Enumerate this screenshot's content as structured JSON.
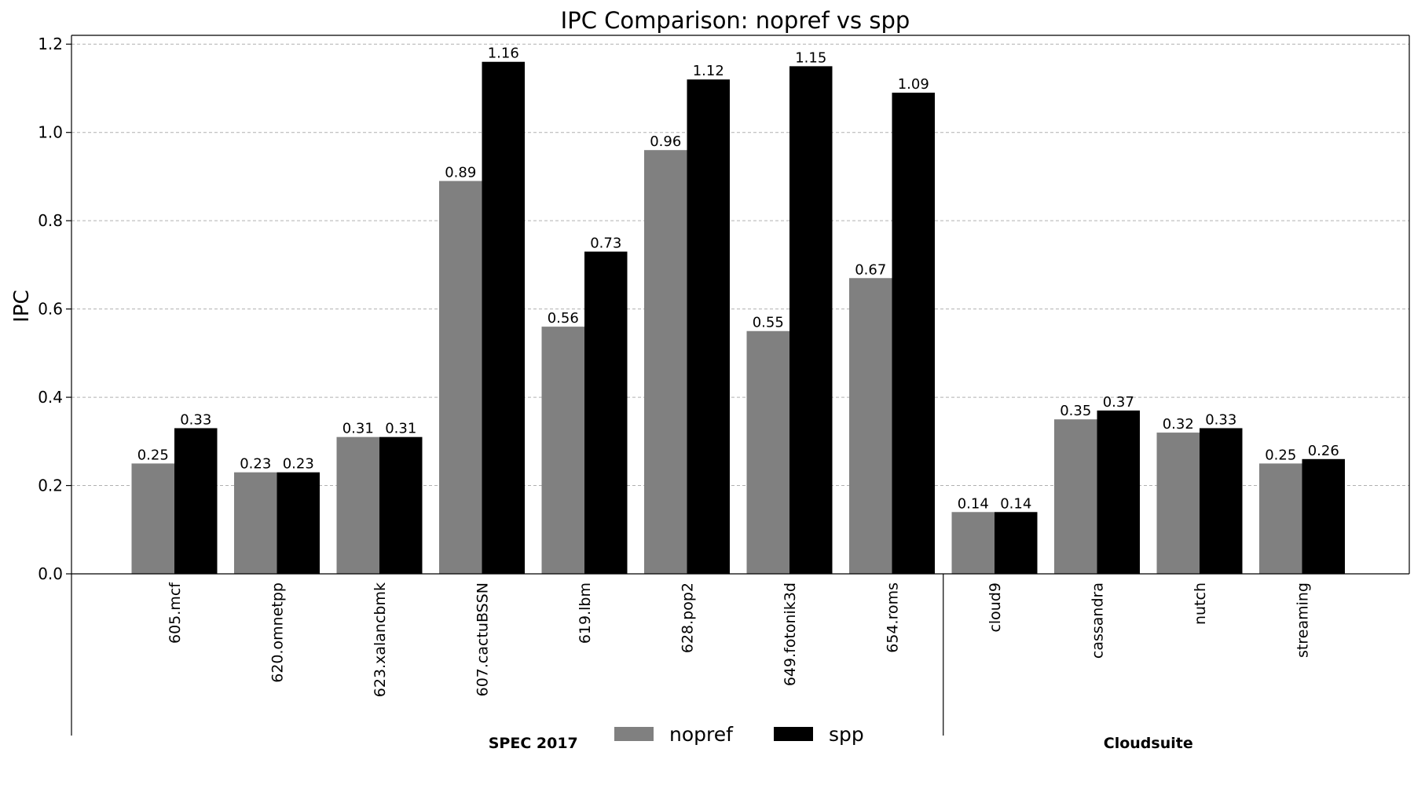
{
  "chart_data": {
    "type": "bar",
    "title": "IPC Comparison: nopref vs spp",
    "xlabel": "",
    "ylabel": "IPC",
    "ylim": [
      0,
      1.22
    ],
    "yticks": [
      "0.0",
      "0.2",
      "0.4",
      "0.6",
      "0.8",
      "1.0",
      "1.2"
    ],
    "grid": "horizontal dashed",
    "legend_position": "bottom-center",
    "categories": [
      "605.mcf",
      "620.omnetpp",
      "623.xalancbmk",
      "607.cactuBSSN",
      "619.lbm",
      "628.pop2",
      "649.fotonik3d",
      "654.roms",
      "cloud9",
      "cassandra",
      "nutch",
      "streaming"
    ],
    "groups": [
      {
        "label": "SPEC 2017",
        "count": 8
      },
      {
        "label": "Cloudsuite",
        "count": 4
      }
    ],
    "series": [
      {
        "name": "nopref",
        "color": "#808080",
        "values": [
          0.25,
          0.23,
          0.31,
          0.89,
          0.56,
          0.96,
          0.55,
          0.67,
          0.14,
          0.35,
          0.32,
          0.25
        ],
        "labels": [
          "0.25",
          "0.23",
          "0.31",
          "0.89",
          "0.56",
          "0.96",
          "0.55",
          "0.67",
          "0.14",
          "0.35",
          "0.32",
          "0.25"
        ]
      },
      {
        "name": "spp",
        "color": "#000000",
        "values": [
          0.33,
          0.23,
          0.31,
          1.16,
          0.73,
          1.12,
          1.15,
          1.09,
          0.14,
          0.37,
          0.33,
          0.26
        ],
        "labels": [
          "0.33",
          "0.23",
          "0.31",
          "1.16",
          "0.73",
          "1.12",
          "1.15",
          "1.09",
          "0.14",
          "0.37",
          "0.33",
          "0.26"
        ]
      }
    ]
  }
}
